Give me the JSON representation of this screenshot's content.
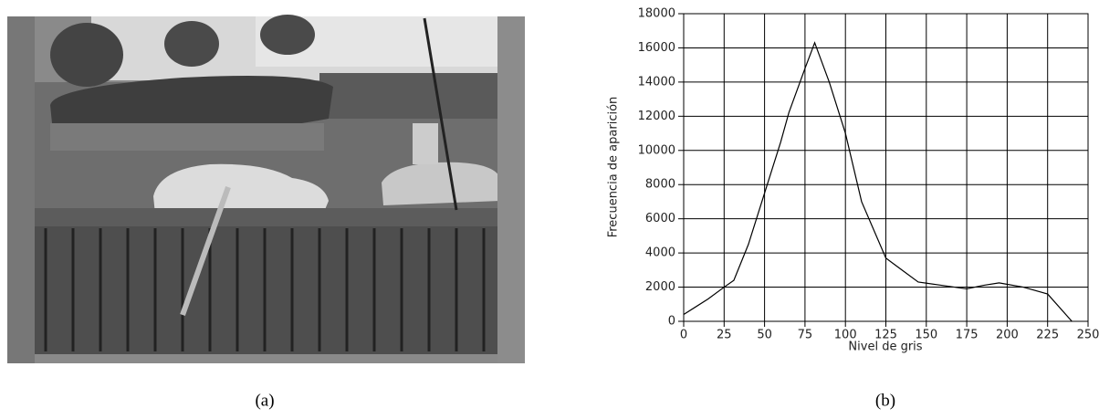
{
  "captions": [
    "(a)",
    "(b)"
  ],
  "chart_data": {
    "type": "line",
    "x_label": "Nivel de gris",
    "y_label": "Frecuencia de aparición",
    "x": [
      0,
      15,
      25,
      31,
      40,
      50,
      60,
      65,
      75,
      81,
      90,
      100,
      110,
      125,
      135,
      145,
      160,
      175,
      185,
      195,
      210,
      225,
      240
    ],
    "values": [
      400,
      1300,
      2000,
      2400,
      4500,
      7500,
      10500,
      12200,
      14800,
      16300,
      14000,
      11000,
      7000,
      3700,
      3000,
      2300,
      2100,
      1900,
      2100,
      2250,
      2000,
      1600,
      0
    ],
    "color": "#000000",
    "xlim": [
      0,
      250
    ],
    "ylim": [
      0,
      18000
    ],
    "xticks": [
      0,
      25,
      50,
      75,
      100,
      125,
      150,
      175,
      200,
      225,
      250
    ],
    "yticks": [
      0,
      2000,
      4000,
      6000,
      8000,
      10000,
      12000,
      14000,
      16000,
      18000
    ],
    "grid": true
  }
}
